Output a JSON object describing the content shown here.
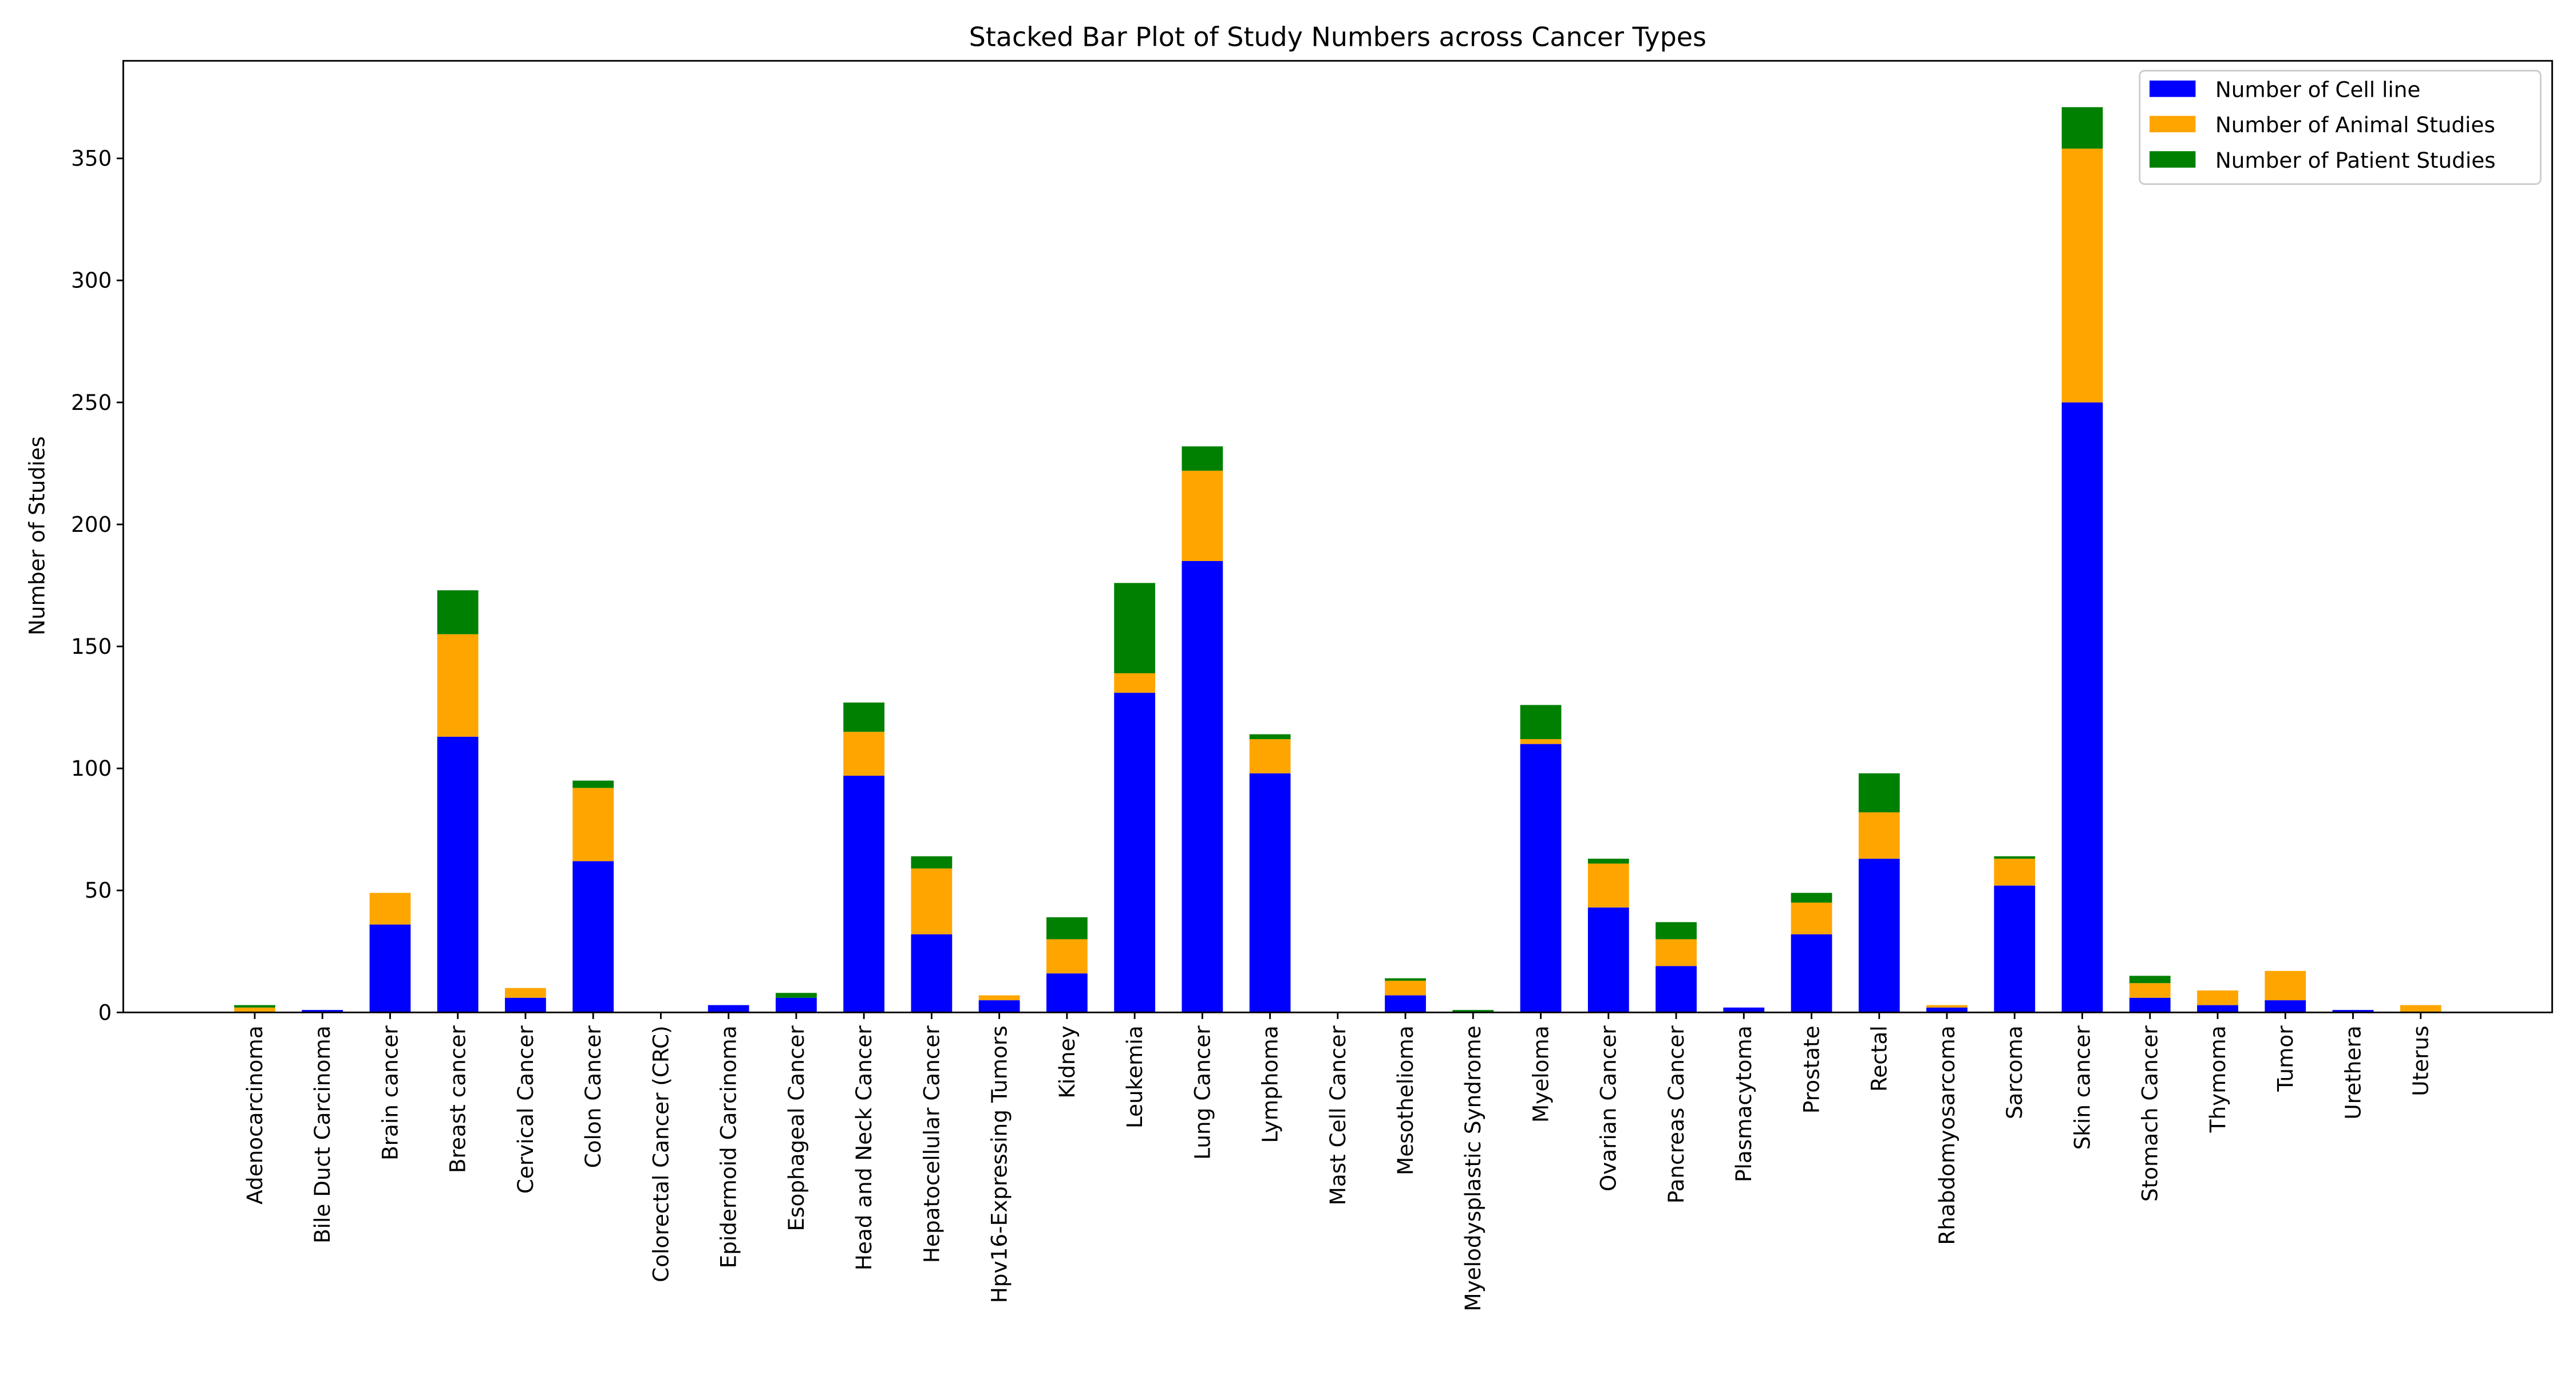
{
  "chart_data": {
    "type": "bar",
    "stacked": true,
    "title": "Stacked Bar Plot of Study Numbers across Cancer Types",
    "xlabel": "",
    "ylabel": "Number of Studies",
    "ylim": [
      0,
      390
    ],
    "yticks": [
      0,
      50,
      100,
      150,
      200,
      250,
      300,
      350
    ],
    "grid": false,
    "legend_position": "top-right",
    "categories": [
      "Adenocarcinoma",
      "Bile Duct Carcinoma",
      "Brain cancer",
      "Breast cancer",
      "Cervical Cancer",
      "Colon Cancer",
      "Colorectal Cancer (CRC)",
      "Epidermoid Carcinoma",
      "Esophageal Cancer",
      "Head and Neck Cancer",
      "Hepatocellular Cancer",
      "Hpv16-Expressing Tumors",
      "Kidney",
      "Leukemia",
      "Lung Cancer",
      "Lymphoma",
      "Mast Cell Cancer",
      "Mesothelioma",
      "Myelodysplastic Syndrome",
      "Myeloma",
      "Ovarian Cancer",
      "Pancreas Cancer",
      "Plasmacytoma",
      "Prostate",
      "Rectal",
      "Rhabdomyosarcoma",
      "Sarcoma",
      "Skin cancer",
      "Stomach Cancer",
      "Thymoma",
      "Tumor",
      "Urethera",
      "Uterus"
    ],
    "series": [
      {
        "name": "Number of Cell line",
        "color": "#0000ff",
        "values": [
          0,
          1,
          36,
          113,
          6,
          62,
          0,
          3,
          6,
          97,
          32,
          5,
          16,
          131,
          185,
          98,
          0,
          7,
          0,
          110,
          43,
          19,
          2,
          32,
          63,
          2,
          52,
          250,
          6,
          3,
          5,
          1,
          0
        ]
      },
      {
        "name": "Number of Animal Studies",
        "color": "#ffa500",
        "values": [
          2,
          0,
          13,
          42,
          4,
          30,
          0,
          0,
          0,
          18,
          27,
          2,
          14,
          8,
          37,
          14,
          0,
          6,
          0,
          2,
          18,
          11,
          0,
          13,
          19,
          1,
          11,
          104,
          6,
          6,
          12,
          0,
          3
        ]
      },
      {
        "name": "Number of Patient Studies",
        "color": "#008000",
        "values": [
          1,
          0,
          0,
          18,
          0,
          3,
          0,
          0,
          2,
          12,
          5,
          0,
          9,
          37,
          10,
          2,
          0,
          1,
          1,
          14,
          2,
          7,
          0,
          4,
          16,
          0,
          1,
          17,
          3,
          0,
          0,
          0,
          0
        ]
      }
    ]
  }
}
